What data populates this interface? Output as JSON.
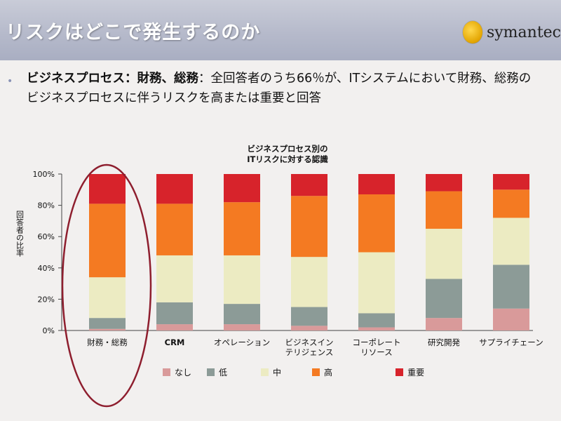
{
  "slide": {
    "title": "リスクはどこで発生するのか",
    "logo_text": "symantec",
    "intro_bold": "ビジネスプロセス：財務、総務",
    "intro_rest": "：全回答者のうち66％が、ITシステムにおいて財務、総務のビジネスプロセスに伴うリスクを高または重要と回答"
  },
  "colors": {
    "なし": "#d99a9a",
    "低": "#8c9b97",
    "中": "#ecebc2",
    "高": "#f47a22",
    "重要": "#d7232b",
    "annotation": "#8e1e2e"
  },
  "chart_data": {
    "type": "bar",
    "stacked": true,
    "title": "ビジネスプロセス別の\nITリスクに対する認識",
    "ylabel": "回答者の比率",
    "xlabel": "",
    "ylim": [
      0,
      100
    ],
    "yticks": [
      "0%",
      "20%",
      "40%",
      "60%",
      "80%",
      "100%"
    ],
    "categories": [
      "財務・総務",
      "CRM",
      "オペレーション",
      "ビジネスイン\nテリジェンス",
      "コーポレート\nリソース",
      "研究開発",
      "サプライチェーン"
    ],
    "series": [
      {
        "name": "なし",
        "values": [
          1,
          4,
          4,
          3,
          2,
          8,
          14
        ]
      },
      {
        "name": "低",
        "values": [
          7,
          14,
          13,
          12,
          9,
          25,
          28
        ]
      },
      {
        "name": "中",
        "values": [
          26,
          30,
          31,
          32,
          39,
          32,
          30
        ]
      },
      {
        "name": "高",
        "values": [
          47,
          33,
          34,
          39,
          37,
          24,
          18
        ]
      },
      {
        "name": "重要",
        "values": [
          19,
          19,
          18,
          14,
          13,
          11,
          10
        ]
      }
    ],
    "legend_position": "bottom",
    "grid": false
  }
}
